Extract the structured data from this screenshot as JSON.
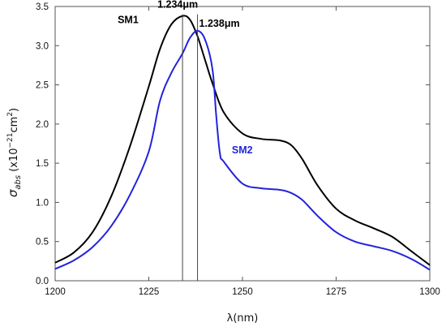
{
  "chart_data": {
    "type": "line",
    "title": "",
    "xlabel": "λ(nm)",
    "ylabel": {
      "main": "σ",
      "sub": "abs",
      "rest1": " (x10",
      "sup1": "−21",
      "rest2": "cm",
      "sup2": "2",
      "rest3": ")"
    },
    "xlim": [
      1200,
      1300
    ],
    "ylim": [
      0,
      3.5
    ],
    "xticks": [
      "1200",
      "1225",
      "1250",
      "1275",
      "1300"
    ],
    "yticks": [
      "0.0",
      "0.5",
      "1.0",
      "1.5",
      "2.0",
      "2.5",
      "3.0",
      "3.5"
    ],
    "grid": false,
    "series": [
      {
        "name": "SM1",
        "color": "#000000",
        "x": [
          1200,
          1205,
          1210,
          1215,
          1220,
          1225,
          1228,
          1231,
          1234,
          1236,
          1238,
          1240,
          1242,
          1245,
          1250,
          1255,
          1260,
          1263,
          1266,
          1270,
          1275,
          1280,
          1285,
          1290,
          1295,
          1300
        ],
        "y": [
          0.23,
          0.36,
          0.62,
          1.08,
          1.72,
          2.48,
          2.96,
          3.27,
          3.38,
          3.33,
          3.12,
          2.82,
          2.52,
          2.15,
          1.88,
          1.81,
          1.79,
          1.73,
          1.55,
          1.22,
          0.92,
          0.77,
          0.67,
          0.56,
          0.38,
          0.2
        ]
      },
      {
        "name": "SM2",
        "color": "#2323dc",
        "x": [
          1200,
          1205,
          1210,
          1215,
          1220,
          1225,
          1228,
          1231,
          1234,
          1236,
          1238,
          1240,
          1242,
          1243,
          1244,
          1245,
          1250,
          1255,
          1260,
          1263,
          1266,
          1270,
          1275,
          1280,
          1285,
          1290,
          1295,
          1300
        ],
        "y": [
          0.15,
          0.26,
          0.43,
          0.7,
          1.1,
          1.65,
          2.3,
          2.65,
          2.9,
          3.1,
          3.19,
          3.08,
          2.7,
          2.1,
          1.62,
          1.52,
          1.24,
          1.18,
          1.16,
          1.12,
          1.03,
          0.83,
          0.62,
          0.5,
          0.44,
          0.38,
          0.28,
          0.14
        ]
      }
    ],
    "vlines": [
      1234,
      1238
    ],
    "annotations": [
      {
        "id": "peak1",
        "text": "1.234μm",
        "x": 1234,
        "y": 3.38,
        "color": "#000000"
      },
      {
        "id": "peak2",
        "text": "1.238μm",
        "x": 1238,
        "y": 3.19,
        "color": "#000000"
      },
      {
        "id": "sm1",
        "text": "SM1",
        "x": 1234,
        "y": 3.38,
        "color": "#000000"
      },
      {
        "id": "sm2",
        "text": "SM2",
        "x": 1245,
        "y": 1.52,
        "color": "#2323dc"
      }
    ]
  }
}
